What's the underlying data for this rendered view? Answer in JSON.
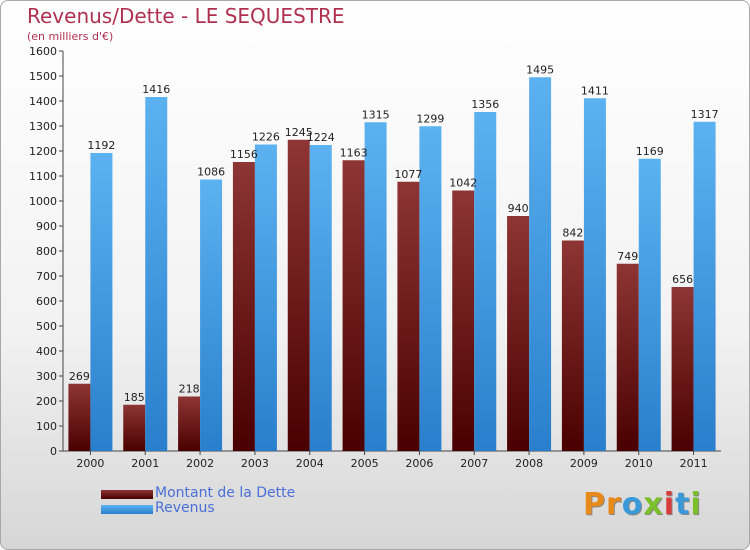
{
  "chart_data": {
    "type": "bar",
    "title": "Revenus/Dette - LE SEQUESTRE",
    "subtitle": "(en milliers d'€)",
    "categories": [
      "2000",
      "2001",
      "2002",
      "2003",
      "2004",
      "2005",
      "2006",
      "2007",
      "2008",
      "2009",
      "2010",
      "2011"
    ],
    "series": [
      {
        "name": "Montant de la Dette",
        "color": "#7a1a1a",
        "values": [
          269,
          185,
          218,
          1156,
          1245,
          1163,
          1077,
          1042,
          940,
          842,
          749,
          656
        ]
      },
      {
        "name": "Revenus",
        "color": "#4aa3e8",
        "values": [
          1192,
          1416,
          1086,
          1226,
          1224,
          1315,
          1299,
          1356,
          1495,
          1411,
          1169,
          1317
        ]
      }
    ],
    "ylim": [
      0,
      1600
    ],
    "ytick_step": 100,
    "grid": false,
    "legend": "bottom-left"
  },
  "logo": {
    "text": "Proxiti"
  }
}
